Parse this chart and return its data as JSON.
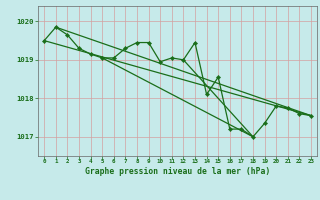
{
  "bg_color": "#c6eaea",
  "grid_color": "#d4a0a0",
  "line_color": "#1a6e1a",
  "marker_color": "#1a6e1a",
  "title": "Graphe pression niveau de la mer (hPa)",
  "title_color": "#1a6e1a",
  "xlim": [
    -0.5,
    23.5
  ],
  "ylim": [
    1016.5,
    1020.4
  ],
  "yticks": [
    1017,
    1018,
    1019,
    1020
  ],
  "xticks": [
    0,
    1,
    2,
    3,
    4,
    5,
    6,
    7,
    8,
    9,
    10,
    11,
    12,
    13,
    14,
    15,
    16,
    17,
    18,
    19,
    20,
    21,
    22,
    23
  ],
  "series1_x": [
    0,
    1,
    2,
    3,
    4,
    5,
    6,
    7,
    8,
    9,
    10,
    11,
    12,
    13,
    14,
    15,
    16,
    17,
    18,
    19,
    20,
    21,
    22,
    23
  ],
  "series1_y": [
    1019.5,
    1019.85,
    1019.65,
    1019.3,
    1019.15,
    1019.05,
    1019.05,
    1019.3,
    1019.45,
    1019.45,
    1018.95,
    1019.05,
    1019.0,
    1019.45,
    1018.1,
    1018.55,
    1017.2,
    1017.2,
    1017.0,
    1017.35,
    1017.8,
    1017.75,
    1017.6,
    1017.55
  ],
  "trend1_x": [
    0,
    23
  ],
  "trend1_y": [
    1019.5,
    1017.55
  ],
  "trend2_x": [
    1,
    23
  ],
  "trend2_y": [
    1019.85,
    1017.55
  ],
  "trend3_x": [
    5,
    18
  ],
  "trend3_y": [
    1019.05,
    1017.0
  ],
  "trend4_x": [
    12,
    18
  ],
  "trend4_y": [
    1019.0,
    1017.0
  ]
}
